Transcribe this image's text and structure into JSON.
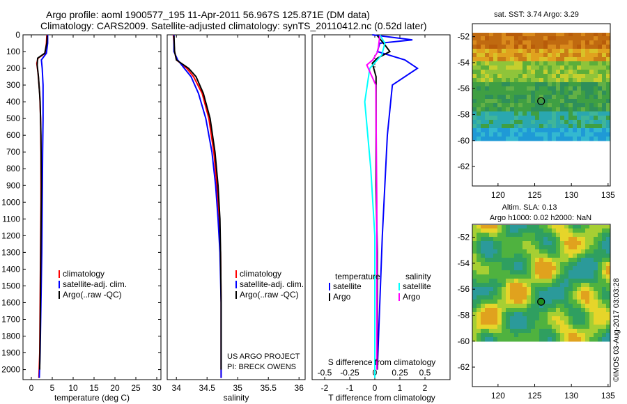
{
  "figure": {
    "title_lines": [
      "Argo profile: aoml 1900577_195 11-Apr-2011 56.967S 125.871E (DM data)",
      "Climatology: CARS2009. Satellite-adjusted climatology: synTS_20110412.nc (0.52d later)"
    ],
    "credit": "US ARGO PROJECT",
    "pi": "PI: BRECK OWENS",
    "watermark": "©IMOS 03-Aug-2017 03:03:28"
  },
  "colors": {
    "climatology": "#ff0000",
    "satellite": "#0000ff",
    "argo": "#000000",
    "sal_satellite": "#00ffff",
    "sal_argo": "#ff00ff"
  },
  "chart_data": [
    {
      "type": "line",
      "name": "temperature profile",
      "xlabel": "temperature (deg C)",
      "ylabel": "",
      "xlim": [
        -2,
        31
      ],
      "ylim": [
        2060,
        0
      ],
      "xticks": [
        0,
        5,
        10,
        15,
        20,
        25,
        30
      ],
      "yticks": [
        0,
        100,
        200,
        300,
        400,
        500,
        600,
        700,
        800,
        900,
        1000,
        1100,
        1200,
        1300,
        1400,
        1500,
        1600,
        1700,
        1800,
        1900,
        2000
      ],
      "legend": [
        "climatology",
        "satellite-adj. clim.",
        "Argo(..raw -QC)"
      ],
      "series": [
        {
          "name": "climatology",
          "x": [
            3.7,
            3.6,
            3.3,
            1.6,
            1.3,
            1.6,
            2.0,
            2.2,
            2.3,
            2.3,
            2.2,
            2.1,
            2.0,
            1.8
          ],
          "y": [
            0,
            50,
            110,
            140,
            170,
            230,
            350,
            500,
            700,
            1000,
            1300,
            1600,
            1900,
            2050
          ]
        },
        {
          "name": "satellite-adj. clim.",
          "x": [
            3.9,
            3.9,
            3.6,
            2.4,
            2.6,
            2.8,
            2.8,
            2.7,
            2.6,
            2.5,
            2.3,
            2.1,
            1.9
          ],
          "y": [
            0,
            50,
            110,
            150,
            200,
            300,
            500,
            700,
            1000,
            1300,
            1600,
            1900,
            2050
          ]
        },
        {
          "name": "Argo(..raw -QC)",
          "x": [
            3.8,
            3.7,
            3.2,
            1.5,
            1.4,
            1.7,
            2.1,
            2.3,
            2.4,
            2.3,
            2.2,
            2.1,
            2.0
          ],
          "y": [
            5,
            50,
            110,
            140,
            180,
            250,
            400,
            600,
            900,
            1200,
            1500,
            1800,
            2000
          ]
        }
      ]
    },
    {
      "type": "line",
      "name": "salinity profile",
      "xlabel": "salinity",
      "ylabel": "",
      "xlim": [
        33.85,
        36.1
      ],
      "ylim": [
        2060,
        0
      ],
      "xticks": [
        34,
        34.5,
        35,
        35.5,
        36
      ],
      "xticklabels": [
        "34",
        "34.5",
        "35",
        "35.5",
        "36"
      ],
      "legend": [
        "climatology",
        "satellite-adj. clim.",
        "Argo(..raw -QC)"
      ],
      "series": [
        {
          "name": "climatology",
          "x": [
            33.95,
            33.97,
            34.0,
            34.17,
            34.28,
            34.42,
            34.53,
            34.61,
            34.66,
            34.7,
            34.72,
            34.73,
            34.73,
            34.73
          ],
          "y": [
            0,
            100,
            150,
            200,
            250,
            350,
            500,
            700,
            900,
            1100,
            1300,
            1600,
            1900,
            2050
          ]
        },
        {
          "name": "satellite-adj. clim.",
          "x": [
            33.96,
            33.96,
            34.02,
            34.13,
            34.24,
            34.36,
            34.48,
            34.58,
            34.64,
            34.68,
            34.71,
            34.73,
            34.73,
            34.73
          ],
          "y": [
            0,
            100,
            150,
            200,
            250,
            350,
            500,
            700,
            900,
            1100,
            1300,
            1600,
            1900,
            2050
          ]
        },
        {
          "name": "Argo(..raw -QC)",
          "x": [
            33.96,
            33.97,
            34.0,
            34.2,
            34.32,
            34.44,
            34.55,
            34.63,
            34.68,
            34.71,
            34.72,
            34.73,
            34.73
          ],
          "y": [
            5,
            100,
            150,
            200,
            250,
            350,
            500,
            700,
            900,
            1100,
            1300,
            1600,
            2000
          ]
        }
      ]
    },
    {
      "type": "line",
      "name": "difference from climatology",
      "xlabel": "T difference from climatology",
      "x2label": "S difference from climatology",
      "xlim": [
        -2.5,
        3
      ],
      "x2lim": [
        -0.625,
        0.75
      ],
      "ylim": [
        2060,
        0
      ],
      "xticks": [
        -2,
        -1,
        0,
        1,
        2
      ],
      "x2ticks": [
        -0.5,
        -0.25,
        0,
        0.25,
        0.5
      ],
      "x2ticklabels": [
        "-0.5",
        "-0.25",
        "0",
        "0.25",
        "0.5"
      ],
      "legend_titles": [
        "temperature",
        "salinity"
      ],
      "legend": [
        "satellite",
        "Argo",
        "satellite",
        "Argo"
      ],
      "series": [
        {
          "name": "T satellite",
          "axis": "T",
          "x": [
            -0.1,
            1.5,
            0.2,
            0.1,
            1.2,
            1.7,
            0.7,
            0.5,
            0.4,
            0.3,
            0.2,
            0.1
          ],
          "y": [
            0,
            30,
            50,
            100,
            150,
            200,
            300,
            600,
            900,
            1200,
            1600,
            2000
          ]
        },
        {
          "name": "T Argo",
          "axis": "T",
          "x": [
            0.1,
            0.4,
            0.6,
            0.1,
            -0.1,
            0.05,
            0.05,
            0.05,
            0.1,
            0.1,
            0.1
          ],
          "y": [
            5,
            60,
            100,
            140,
            170,
            250,
            500,
            900,
            1300,
            1700,
            2000
          ]
        },
        {
          "name": "S satellite",
          "axis": "S",
          "x": [
            0.05,
            0.1,
            0.07,
            -0.05,
            -0.1,
            -0.04,
            0.0,
            0.0,
            0.0,
            0.0
          ],
          "y": [
            0,
            50,
            120,
            200,
            400,
            800,
            1200,
            1600,
            1900,
            2050
          ]
        },
        {
          "name": "S Argo",
          "axis": "S",
          "x": [
            0.05,
            0.03,
            -0.02,
            -0.08,
            0.01,
            0.02,
            0.02,
            0.02
          ],
          "y": [
            5,
            100,
            150,
            180,
            300,
            1000,
            1600,
            2000
          ]
        }
      ]
    },
    {
      "type": "heatmap",
      "name": "satellite SST map",
      "title": "sat. SST: 3.74  Argo: 3.29",
      "xlim": [
        116.5,
        135.3
      ],
      "ylim": [
        -63.5,
        -51
      ],
      "xticks": [
        120,
        125,
        130,
        135
      ],
      "yticks": [
        -52,
        -54,
        -56,
        -58,
        -60,
        -62
      ],
      "marker": {
        "lon": 125.871,
        "lat": -56.967
      },
      "data_coverage_lat_min": -60
    },
    {
      "type": "heatmap",
      "name": "altimetry SLA map",
      "title": "Altim. SLA: 0.13",
      "subtitle": "Argo h1000: 0.02 h2000: NaN",
      "xlim": [
        116.5,
        135.3
      ],
      "ylim": [
        -63.5,
        -51
      ],
      "xticks": [
        120,
        125,
        130,
        135
      ],
      "yticks": [
        -52,
        -54,
        -56,
        -58,
        -60,
        -62
      ],
      "marker": {
        "lon": 125.871,
        "lat": -56.967
      },
      "data_coverage_lat_min": -60
    }
  ]
}
